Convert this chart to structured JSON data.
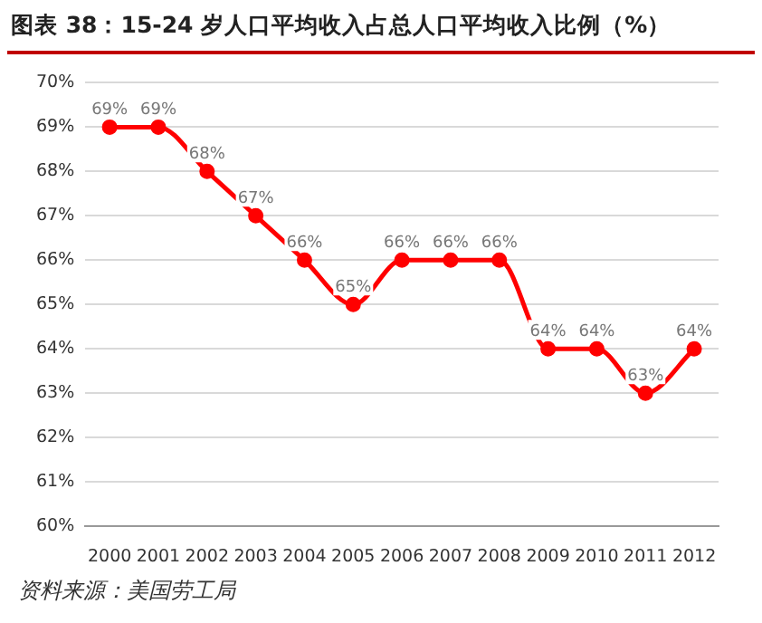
{
  "chart_data": {
    "type": "line",
    "title": "图表 38：15-24 岁人口平均收入占总人口平均收入比例（%）",
    "categories": [
      "2000",
      "2001",
      "2002",
      "2003",
      "2004",
      "2005",
      "2006",
      "2007",
      "2008",
      "2009",
      "2010",
      "2011",
      "2012"
    ],
    "series": [
      {
        "color": "#ff0000",
        "values": [
          69,
          69,
          68,
          67,
          66,
          65,
          66,
          66,
          66,
          64,
          64,
          63,
          64
        ],
        "value_labels": [
          "69%",
          "69%",
          "68%",
          "67%",
          "66%",
          "65%",
          "66%",
          "66%",
          "66%",
          "64%",
          "64%",
          "63%",
          "64%"
        ]
      }
    ],
    "ylim": [
      60,
      70
    ],
    "yticks": [
      {
        "value": 60,
        "label": "60%"
      },
      {
        "value": 61,
        "label": "61%"
      },
      {
        "value": 62,
        "label": "62%"
      },
      {
        "value": 63,
        "label": "63%"
      },
      {
        "value": 64,
        "label": "64%"
      },
      {
        "value": 65,
        "label": "65%"
      },
      {
        "value": 66,
        "label": "66%"
      },
      {
        "value": 67,
        "label": "67%"
      },
      {
        "value": 68,
        "label": "68%"
      },
      {
        "value": 69,
        "label": "69%"
      },
      {
        "value": 70,
        "label": "70%"
      }
    ],
    "grid": "y",
    "legend": false,
    "marker": "circle",
    "line_style": "solid",
    "annotations": [
      "资料来源：美国劳工局"
    ]
  }
}
